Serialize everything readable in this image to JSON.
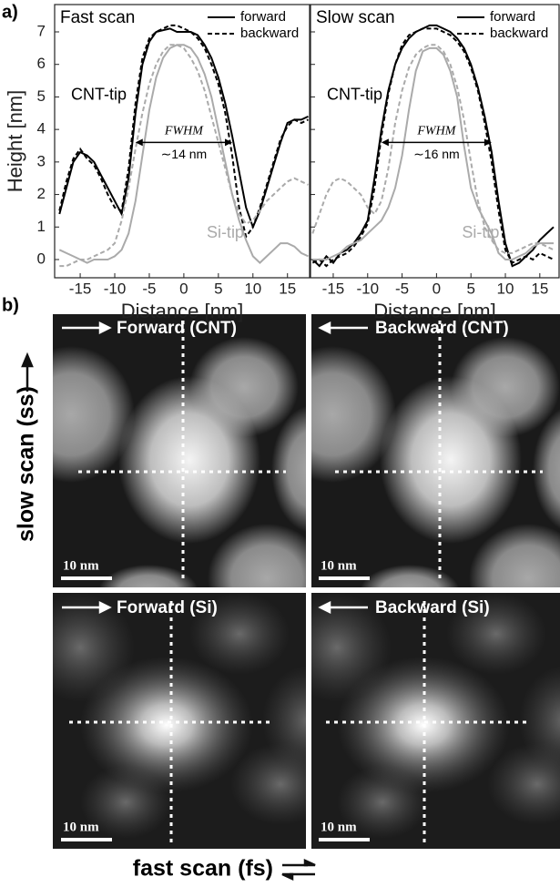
{
  "panel_labels": [
    "a)",
    "b)"
  ],
  "chart_data": [
    {
      "type": "line",
      "title": "Fast scan",
      "xlabel": "Distance [nm]",
      "ylabel": "Height [nm]",
      "x": [
        -18,
        -17,
        -16,
        -15,
        -14,
        -13,
        -12,
        -11,
        -10,
        -9,
        -8,
        -7,
        -6,
        -5,
        -4,
        -3,
        -2,
        -1,
        0,
        1,
        2,
        3,
        4,
        5,
        6,
        7,
        8,
        9,
        10,
        11,
        12,
        13,
        14,
        15,
        16,
        17,
        18
      ],
      "xlim": [
        -18.7,
        18.2
      ],
      "xticks": [
        -15,
        -10,
        -5,
        0,
        5,
        10,
        15
      ],
      "ylim": [
        -0.56,
        7.84
      ],
      "yticks": [
        0,
        1,
        2,
        3,
        4,
        5,
        6,
        7
      ],
      "series": [
        {
          "name": "forward",
          "color": "#000000",
          "dashed": false,
          "values": [
            1.4,
            2.2,
            3.0,
            3.3,
            3.2,
            3.0,
            2.6,
            2.2,
            1.8,
            1.4,
            2.5,
            4.5,
            6.0,
            6.7,
            7.0,
            7.05,
            7.1,
            7.0,
            7.0,
            7.0,
            6.9,
            6.6,
            6.2,
            5.6,
            4.8,
            3.8,
            2.7,
            1.6,
            1.0,
            1.5,
            2.2,
            2.9,
            3.6,
            4.2,
            4.3,
            4.3,
            4.4
          ]
        },
        {
          "name": "backward",
          "color": "#000000",
          "dashed": true,
          "values": [
            1.5,
            2.4,
            3.1,
            3.4,
            3.1,
            2.9,
            2.5,
            2.0,
            1.6,
            1.5,
            2.8,
            4.8,
            6.2,
            6.8,
            7.0,
            7.1,
            7.2,
            7.2,
            7.1,
            7.0,
            6.8,
            6.5,
            6.0,
            5.4,
            4.5,
            3.2,
            1.6,
            0.7,
            1.0,
            1.6,
            2.3,
            3.0,
            3.7,
            4.1,
            4.3,
            4.2,
            4.3
          ]
        },
        {
          "color": "#aaaaaa",
          "dashed": false,
          "values": [
            0.3,
            0.2,
            0.1,
            0.0,
            -0.1,
            0.0,
            0.0,
            0.0,
            0.1,
            0.3,
            0.8,
            1.8,
            3.2,
            4.6,
            5.6,
            6.2,
            6.5,
            6.6,
            6.6,
            6.5,
            6.2,
            5.7,
            5.0,
            4.0,
            3.0,
            2.0,
            1.2,
            0.6,
            0.1,
            -0.1,
            0.1,
            0.3,
            0.5,
            0.5,
            0.4,
            0.2,
            0.1
          ]
        },
        {
          "color": "#aaaaaa",
          "dashed": true,
          "values": [
            -0.2,
            -0.2,
            -0.1,
            0.0,
            0.0,
            0.1,
            0.2,
            0.3,
            0.5,
            1.2,
            2.2,
            3.4,
            4.5,
            5.4,
            6.0,
            6.4,
            6.6,
            6.6,
            6.5,
            6.2,
            5.8,
            5.2,
            4.4,
            3.6,
            2.8,
            2.0,
            1.4,
            1.1,
            1.2,
            1.5,
            1.8,
            2.0,
            2.2,
            2.4,
            2.5,
            2.4,
            2.3
          ]
        }
      ],
      "annotations": [
        "CNT-tip",
        "Si-tip"
      ],
      "fwhm": {
        "label": "FWHM",
        "value_label": "∼14 nm",
        "x": [
          -7,
          7
        ],
        "y": 3.6
      }
    },
    {
      "type": "line",
      "title": "Slow scan",
      "xlabel": "Distance [nm]",
      "sharey": true,
      "x": [
        -18,
        -17,
        -16,
        -15,
        -14,
        -13,
        -12,
        -11,
        -10,
        -9,
        -8,
        -7,
        -6,
        -5,
        -4,
        -3,
        -2,
        -1,
        0,
        1,
        2,
        3,
        4,
        5,
        6,
        7,
        8,
        9,
        10,
        11,
        12,
        13,
        14,
        15,
        16,
        17
      ],
      "xlim": [
        -18.3,
        17.8
      ],
      "xticks": [
        -15,
        -10,
        -5,
        0,
        5,
        10,
        15
      ],
      "ylim": [
        -0.56,
        7.84
      ],
      "yticks": [
        0,
        1,
        2,
        3,
        4,
        5,
        6,
        7
      ],
      "series": [
        {
          "name": "forward",
          "color": "#000000",
          "dashed": false,
          "values": [
            0.0,
            -0.2,
            0.1,
            -0.1,
            0.2,
            0.3,
            0.5,
            0.8,
            1.2,
            2.5,
            4.0,
            5.2,
            6.0,
            6.5,
            6.8,
            7.0,
            7.1,
            7.2,
            7.2,
            7.1,
            7.0,
            6.8,
            6.5,
            6.0,
            5.3,
            4.4,
            3.3,
            1.8,
            0.5,
            -0.2,
            -0.1,
            0.1,
            0.3,
            0.6,
            0.8,
            1.0
          ]
        },
        {
          "name": "backward",
          "color": "#000000",
          "dashed": true,
          "values": [
            -0.1,
            0.0,
            -0.2,
            0.0,
            0.1,
            0.2,
            0.4,
            0.7,
            1.1,
            2.2,
            3.8,
            5.1,
            6.0,
            6.6,
            6.9,
            7.0,
            7.1,
            7.1,
            7.1,
            7.0,
            6.9,
            6.7,
            6.4,
            5.9,
            5.2,
            4.2,
            3.0,
            1.5,
            0.3,
            -0.1,
            0.0,
            0.1,
            0.0,
            0.2,
            0.1,
            0.0
          ]
        },
        {
          "color": "#aaaaaa",
          "dashed": false,
          "values": [
            0.0,
            0.0,
            0.0,
            0.1,
            0.2,
            0.4,
            0.5,
            0.6,
            0.8,
            1.0,
            1.2,
            1.6,
            2.2,
            3.2,
            4.6,
            5.8,
            6.4,
            6.5,
            6.5,
            6.3,
            5.8,
            5.0,
            3.5,
            2.2,
            1.6,
            1.2,
            0.8,
            0.2,
            0.0,
            0.0,
            0.1,
            0.2,
            0.4,
            0.5,
            0.5,
            0.5
          ]
        },
        {
          "color": "#aaaaaa",
          "dashed": true,
          "values": [
            0.8,
            1.4,
            2.0,
            2.4,
            2.5,
            2.4,
            2.2,
            2.0,
            1.6,
            1.4,
            1.8,
            2.8,
            4.2,
            5.2,
            5.9,
            6.3,
            6.5,
            6.6,
            6.6,
            6.4,
            6.0,
            5.3,
            4.3,
            3.0,
            1.8,
            1.0,
            0.6,
            0.3,
            0.2,
            0.2,
            0.3,
            0.4,
            0.5,
            0.5,
            0.4,
            0.3
          ]
        }
      ],
      "annotations": [
        "CNT-tip",
        "Si-tip"
      ],
      "fwhm": {
        "label": "FWHM",
        "value_label": "∼16 nm",
        "x": [
          -8,
          8
        ],
        "y": 3.6
      }
    }
  ],
  "images": [
    {
      "title": "Forward (CNT)",
      "scale_bar": "10 nm"
    },
    {
      "title": "Backward (CNT)",
      "scale_bar": "10 nm"
    },
    {
      "title": "Forward (Si)",
      "scale_bar": "10 nm"
    },
    {
      "title": "Backward (Si)",
      "scale_bar": "10 nm"
    }
  ],
  "images_ylabel": "slow scan (ss)",
  "images_xlabel": "fast scan (fs)"
}
